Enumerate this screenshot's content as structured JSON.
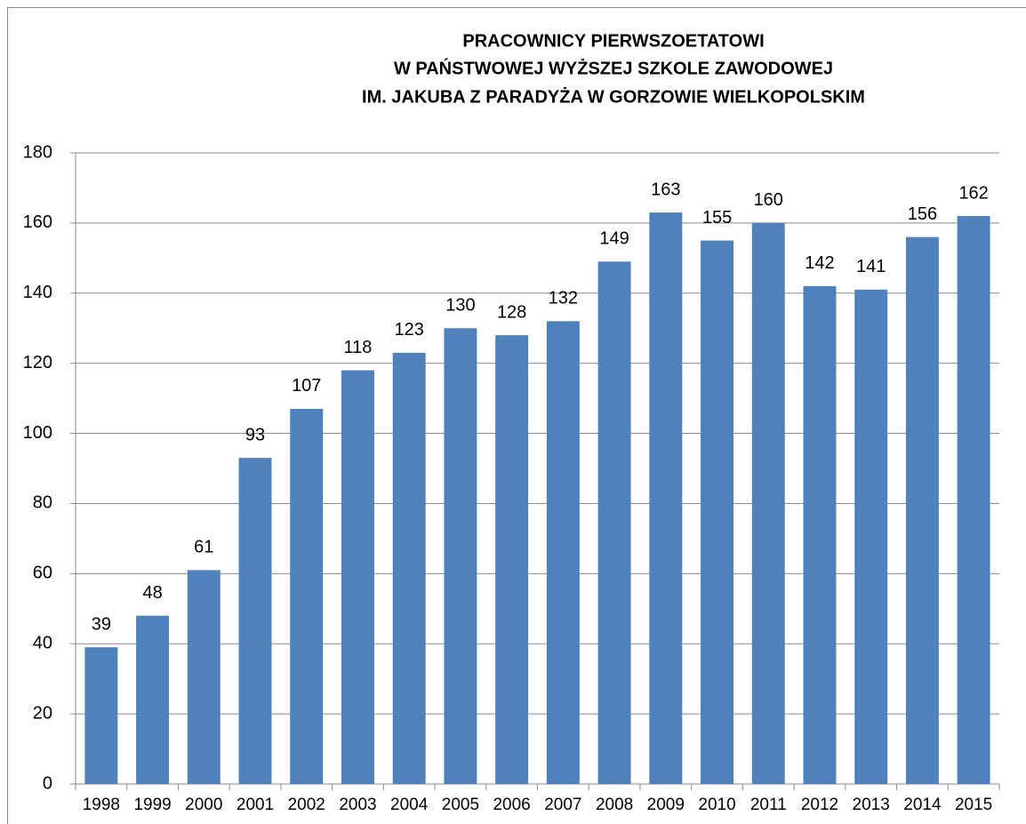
{
  "chart_data": {
    "type": "bar",
    "title": [
      "PRACOWNICY PIERWSZOETATOWI",
      "W PAŃSTWOWEJ WYŻSZEJ SZKOLE ZAWODOWEJ",
      "IM. JAKUBA Z PARADYŻA W GORZOWIE WIELKOPOLSKIM"
    ],
    "categories": [
      "1998",
      "1999",
      "2000",
      "2001",
      "2002",
      "2003",
      "2004",
      "2005",
      "2006",
      "2007",
      "2008",
      "2009",
      "2010",
      "2011",
      "2012",
      "2013",
      "2014",
      "2015"
    ],
    "values": [
      39,
      48,
      61,
      93,
      107,
      118,
      123,
      130,
      128,
      132,
      149,
      163,
      155,
      160,
      142,
      141,
      156,
      162
    ],
    "color": "#4f81bd",
    "ylim": [
      0,
      180
    ],
    "yticks": [
      0,
      20,
      40,
      60,
      80,
      100,
      120,
      140,
      160,
      180
    ],
    "grid": true
  }
}
